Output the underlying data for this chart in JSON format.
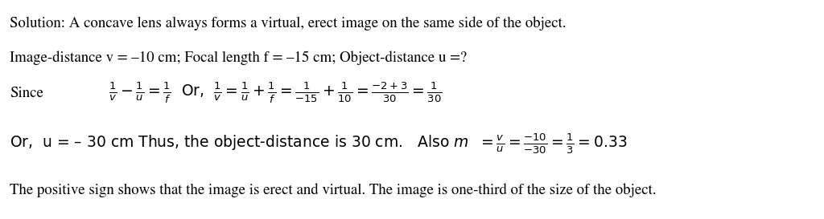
{
  "background_color": "#ffffff",
  "figsize": [
    10.24,
    2.73
  ],
  "dpi": 100,
  "line1": "Solution: A concave lens always forms a virtual, erect image on the same side of the object.",
  "line2": "Image-distance v = –10 cm; Focal length f = –15 cm; Object-distance u =?",
  "line3_label": "Since",
  "line3_math": "$\\frac{1}{v}-\\frac{1}{u}=\\frac{1}{f}$  Or,  $\\frac{1}{v}=\\frac{1}{u}+\\frac{1}{f}=\\frac{1}{-15}+\\frac{1}{10}=\\frac{-2+3}{30}=\\frac{1}{30}$",
  "line4_text": "Or,  u = – 30 cm Thus, the object-distance is 30 cm.   Also $m$  $=\\frac{v}{u}=\\frac{-10}{-30}=\\frac{1}{3}=0.33$",
  "line5": "The positive sign shows that the image is erect and virtual. The image is one-third of the size of the object.",
  "fontsize": 13.5,
  "math_fontsize": 13.5,
  "font_family": "STIXGeneral",
  "text_color": "#000000"
}
